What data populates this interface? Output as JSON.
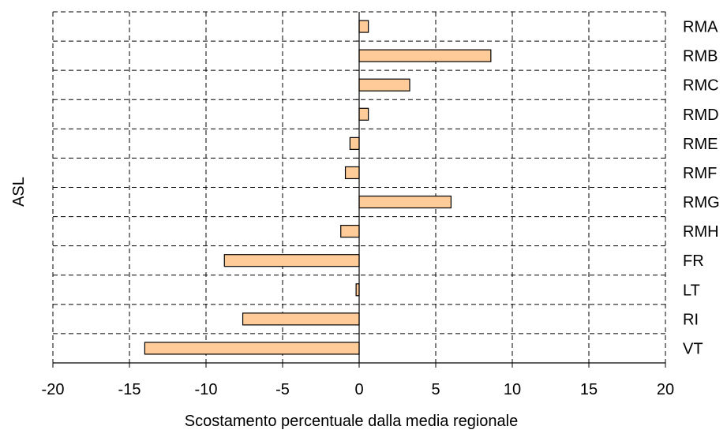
{
  "chart_data": {
    "type": "bar",
    "orientation": "horizontal",
    "title": "",
    "xlabel": "Scostamento percentuale dalla media regionale",
    "ylabel": "ASL",
    "categories": [
      "RMA",
      "RMB",
      "RMC",
      "RMD",
      "RME",
      "RMF",
      "RMG",
      "RMH",
      "FR",
      "LT",
      "RI",
      "VT"
    ],
    "values": [
      0.6,
      8.6,
      3.3,
      0.6,
      -0.6,
      -0.9,
      6.0,
      -1.2,
      -8.8,
      -0.2,
      -7.6,
      -14.0
    ],
    "xlim": [
      -20,
      20
    ],
    "xticks": [
      "-20",
      "-15",
      "-10",
      "-5",
      "0",
      "5",
      "10",
      "15",
      "20"
    ],
    "grid": "dashed",
    "legend": "none",
    "bar_color": "#FFCC99",
    "bar_stroke": "#000000",
    "category_labels_side": "right"
  }
}
